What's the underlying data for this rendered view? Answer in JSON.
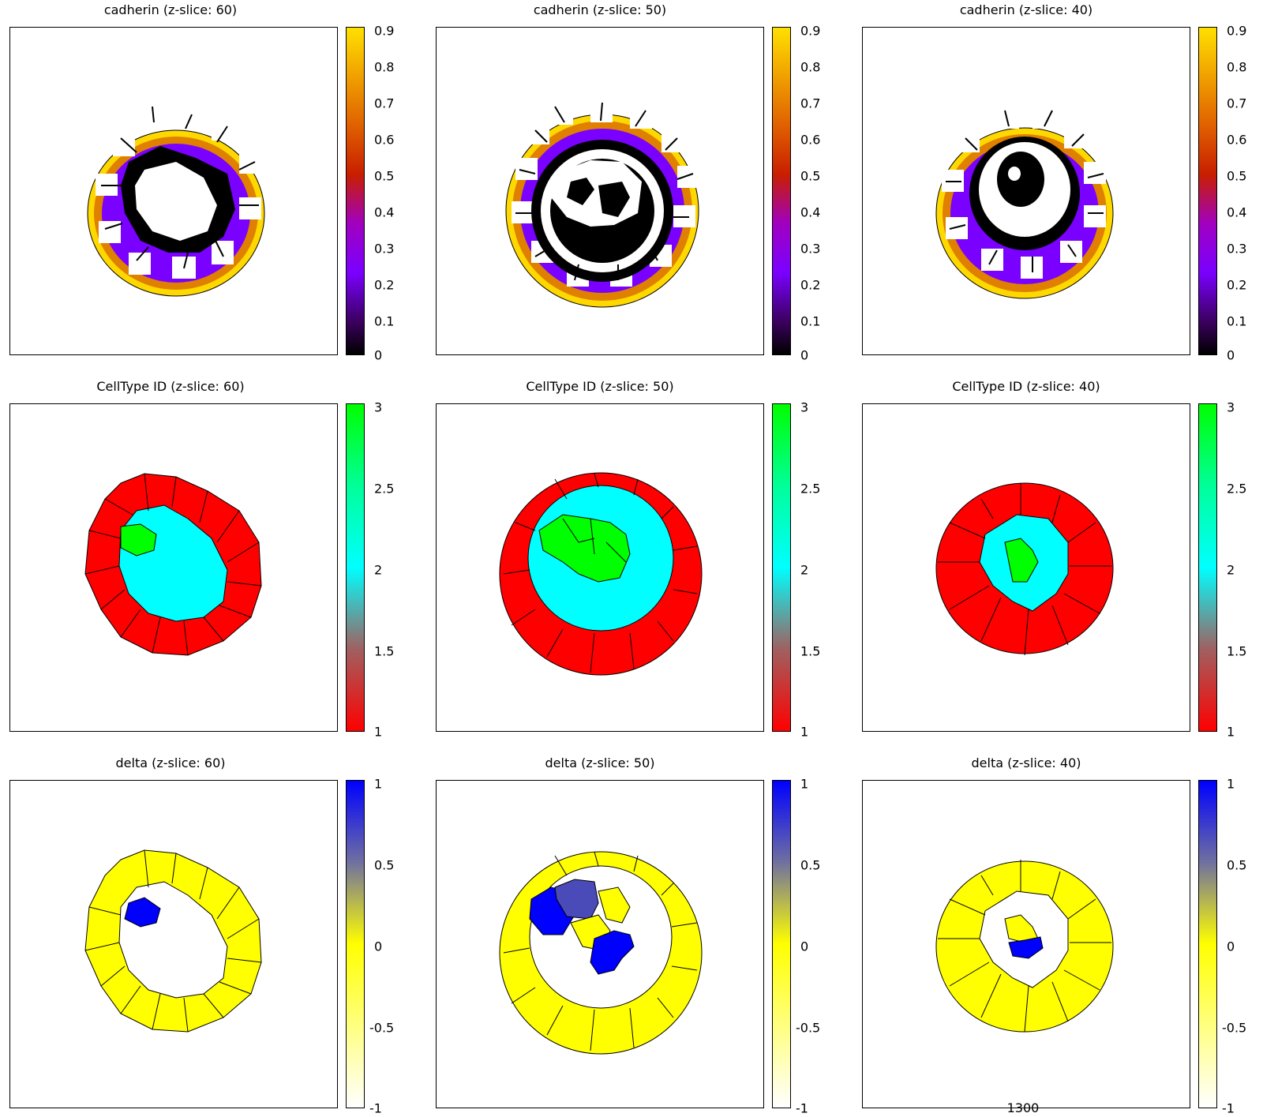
{
  "chart_data": [
    {
      "type": "heatmap",
      "variable": "cadherin",
      "title": "cadherin (z-slice: 60)",
      "colorbar": {
        "ticks": [
          "0.9",
          "0.8",
          "0.7",
          "0.6",
          "0.5",
          "0.4",
          "0.3",
          "0.2",
          "0.1",
          "0"
        ],
        "range": [
          0,
          0.9
        ],
        "colormap": "gnuplot-default (black-purple-red-orange-yellow)"
      },
      "features": {
        "outer_ring": "cells with high cadherin at periphery",
        "arrows": true,
        "interior_shape": "open lumen",
        "center_offset": [
          -0.05,
          0.0
        ]
      }
    },
    {
      "type": "heatmap",
      "variable": "cadherin",
      "title": "cadherin (z-slice: 50)",
      "colorbar": {
        "ticks": [
          "0.9",
          "0.8",
          "0.7",
          "0.6",
          "0.5",
          "0.4",
          "0.3",
          "0.2",
          "0.1",
          "0"
        ],
        "range": [
          0,
          0.9
        ],
        "colormap": "gnuplot-default (black-purple-red-orange-yellow)"
      },
      "features": {
        "outer_ring": "cells with high cadherin at periphery",
        "arrows": true,
        "interior_shape": "lumen with inner cell cluster",
        "center_offset": [
          0.0,
          0.0
        ]
      }
    },
    {
      "type": "heatmap",
      "variable": "cadherin",
      "title": "cadherin (z-slice: 40)",
      "colorbar": {
        "ticks": [
          "0.9",
          "0.8",
          "0.7",
          "0.6",
          "0.5",
          "0.4",
          "0.3",
          "0.2",
          "0.1",
          "0"
        ],
        "range": [
          0,
          0.9
        ],
        "colormap": "gnuplot-default (black-purple-red-orange-yellow)"
      },
      "features": {
        "outer_ring": "cells with high cadherin at periphery",
        "arrows": true,
        "interior_shape": "lumen with eye-like core",
        "center_offset": [
          0.0,
          0.0
        ]
      }
    },
    {
      "type": "heatmap",
      "variable": "CellType ID",
      "title": "CellType ID (z-slice: 60)",
      "colorbar": {
        "ticks": [
          "3",
          "2.5",
          "2",
          "1.5",
          "1"
        ],
        "range": [
          1,
          3
        ],
        "colormap": "red-cyan-green"
      },
      "features": {
        "outer_color": "#ff0000",
        "inner_color": "#00ffff",
        "core_color": "#00ff00"
      }
    },
    {
      "type": "heatmap",
      "variable": "CellType ID",
      "title": "CellType ID (z-slice: 50)",
      "colorbar": {
        "ticks": [
          "3",
          "2.5",
          "2",
          "1.5",
          "1"
        ],
        "range": [
          1,
          3
        ],
        "colormap": "red-cyan-green"
      },
      "features": {
        "outer_color": "#ff0000",
        "inner_color": "#00ffff",
        "core_color": "#00ff00"
      }
    },
    {
      "type": "heatmap",
      "variable": "CellType ID",
      "title": "CellType ID (z-slice: 40)",
      "colorbar": {
        "ticks": [
          "3",
          "2.5",
          "2",
          "1.5",
          "1"
        ],
        "range": [
          1,
          3
        ],
        "colormap": "red-cyan-green"
      },
      "features": {
        "outer_color": "#ff0000",
        "inner_color": "#00ffff",
        "core_color": "#00ff00"
      }
    },
    {
      "type": "heatmap",
      "variable": "delta",
      "title": "delta (z-slice: 60)",
      "colorbar": {
        "ticks": [
          "1",
          "0.5",
          "0",
          "-0.5",
          "-1"
        ],
        "range": [
          -1,
          1
        ],
        "colormap": "white-yellow-blue"
      },
      "features": {
        "ring_color": "#ffff00",
        "core_color": "#0000ff"
      }
    },
    {
      "type": "heatmap",
      "variable": "delta",
      "title": "delta (z-slice: 50)",
      "colorbar": {
        "ticks": [
          "1",
          "0.5",
          "0",
          "-0.5",
          "-1"
        ],
        "range": [
          -1,
          1
        ],
        "colormap": "white-yellow-blue"
      },
      "features": {
        "ring_color": "#ffff00",
        "core_color": "#0000ff"
      }
    },
    {
      "type": "heatmap",
      "variable": "delta",
      "title": "delta (z-slice: 40)",
      "colorbar": {
        "ticks": [
          "1",
          "0.5",
          "0",
          "-0.5",
          "-1"
        ],
        "range": [
          -1,
          1
        ],
        "colormap": "white-yellow-blue"
      },
      "features": {
        "ring_color": "#ffff00",
        "core_color": "#0000ff"
      }
    }
  ],
  "footer_label": "1300",
  "colors": {
    "cadherin_high": "#ffe000",
    "cadherin_mid": "#cc3300",
    "cadherin_low": "#7a00ff",
    "celltype_1": "#ff0000",
    "celltype_2": "#00ffff",
    "celltype_3": "#00ff00",
    "delta_pos": "#0000ff",
    "delta_zero": "#ffff00",
    "delta_neg": "#ffffe0"
  }
}
